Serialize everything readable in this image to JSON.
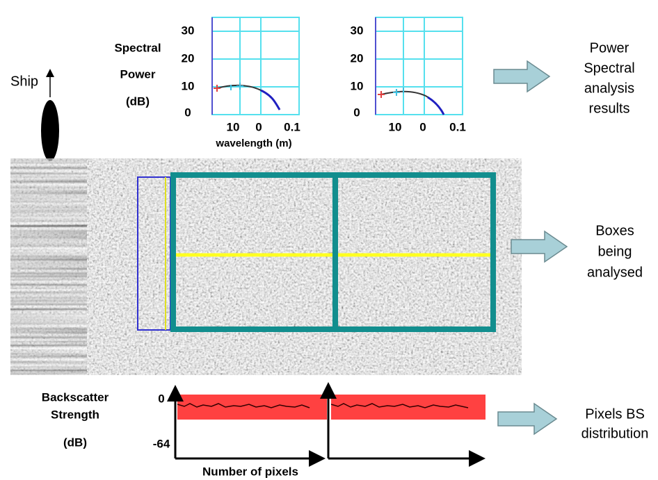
{
  "ship": {
    "label": "Ship"
  },
  "spectral": {
    "ylabel": [
      "Spectral",
      "Power",
      "(dB)"
    ],
    "plots": [
      {
        "yticks": [
          "30",
          "20",
          "10",
          "0"
        ],
        "xticks": [
          "10",
          "0",
          "0.1"
        ],
        "xlabel": "wavelength (m)"
      },
      {
        "yticks": [
          "30",
          "20",
          "10",
          "0"
        ],
        "xticks": [
          "10",
          "0",
          "0.1"
        ]
      }
    ]
  },
  "annotations": [
    {
      "lines": [
        "Power",
        "Spectral",
        "analysis",
        "results"
      ]
    },
    {
      "lines": [
        "Boxes",
        "being",
        "analysed"
      ]
    },
    {
      "lines": [
        "Pixels BS",
        "distribution"
      ]
    }
  ],
  "backscatter": {
    "ylabel": [
      "Backscatter",
      "Strength",
      "(dB)"
    ],
    "yticks": [
      "0",
      "-64"
    ],
    "xlabel": "Number of pixels"
  }
}
